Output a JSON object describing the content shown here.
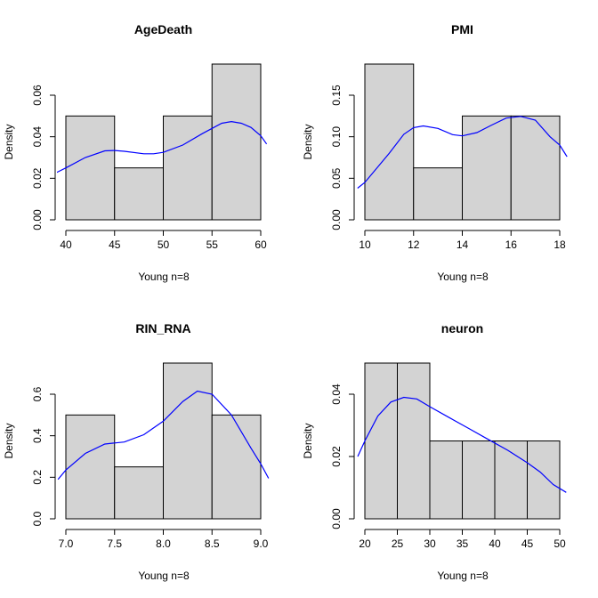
{
  "chart_data": [
    {
      "type": "bar",
      "subtype": "histogram",
      "title": "AgeDeath",
      "xlabel": "Young n=8",
      "ylabel": "Density",
      "bins": [
        [
          40,
          45
        ],
        [
          45,
          50
        ],
        [
          50,
          55
        ],
        [
          55,
          60
        ]
      ],
      "values": [
        0.05,
        0.025,
        0.05,
        0.075
      ],
      "xlim": [
        40,
        60
      ],
      "ylim": [
        0,
        0.075
      ],
      "xticks": [
        40,
        45,
        50,
        55,
        60
      ],
      "xtick_labels": [
        "40",
        "45",
        "50",
        "55",
        "60"
      ],
      "yticks": [
        0,
        0.02,
        0.04,
        0.06
      ],
      "ytick_labels": [
        "0.00",
        "0.02",
        "0.04",
        "0.06"
      ],
      "density_color": "#0000ff",
      "density_curve": [
        [
          38.7,
          0.022
        ],
        [
          40,
          0.025
        ],
        [
          42,
          0.03
        ],
        [
          44,
          0.0332
        ],
        [
          45,
          0.0334
        ],
        [
          46,
          0.033
        ],
        [
          48,
          0.0318
        ],
        [
          49,
          0.0318
        ],
        [
          50,
          0.0325
        ],
        [
          52,
          0.036
        ],
        [
          54,
          0.0415
        ],
        [
          56,
          0.0465
        ],
        [
          57,
          0.0473
        ],
        [
          58,
          0.0465
        ],
        [
          59,
          0.0445
        ],
        [
          60,
          0.0405
        ],
        [
          60.6,
          0.0365
        ]
      ]
    },
    {
      "type": "bar",
      "subtype": "histogram",
      "title": "PMI",
      "xlabel": "Young n=8",
      "ylabel": "Density",
      "bins": [
        [
          10,
          12
        ],
        [
          12,
          14
        ],
        [
          14,
          16
        ],
        [
          16,
          18
        ]
      ],
      "values": [
        0.1875,
        0.0625,
        0.125,
        0.125
      ],
      "xlim": [
        10,
        18
      ],
      "ylim": [
        0,
        0.1875
      ],
      "xticks": [
        10,
        12,
        14,
        16,
        18
      ],
      "xtick_labels": [
        "10",
        "12",
        "14",
        "16",
        "18"
      ],
      "yticks": [
        0,
        0.05,
        0.1,
        0.15
      ],
      "ytick_labels": [
        "0.00",
        "0.05",
        "0.10",
        "0.15"
      ],
      "density_color": "#0000ff",
      "density_curve": [
        [
          9.7,
          0.038
        ],
        [
          10,
          0.045
        ],
        [
          11,
          0.08
        ],
        [
          11.6,
          0.103
        ],
        [
          12,
          0.111
        ],
        [
          12.4,
          0.113
        ],
        [
          13,
          0.11
        ],
        [
          13.6,
          0.1025
        ],
        [
          14,
          0.101
        ],
        [
          14.6,
          0.105
        ],
        [
          15.2,
          0.114
        ],
        [
          15.8,
          0.1225
        ],
        [
          16.4,
          0.1245
        ],
        [
          17,
          0.12
        ],
        [
          17.6,
          0.1
        ],
        [
          18,
          0.09
        ],
        [
          18.3,
          0.076
        ]
      ]
    },
    {
      "type": "bar",
      "subtype": "histogram",
      "title": "RIN_RNA",
      "xlabel": "Young n=8",
      "ylabel": "Density",
      "bins": [
        [
          7.0,
          7.5
        ],
        [
          7.5,
          8.0
        ],
        [
          8.0,
          8.5
        ],
        [
          8.5,
          9.0
        ]
      ],
      "values": [
        0.5,
        0.25,
        0.75,
        0.5
      ],
      "xlim": [
        7.0,
        9.0
      ],
      "ylim": [
        0,
        0.75
      ],
      "xticks": [
        7.0,
        7.5,
        8.0,
        8.5,
        9.0
      ],
      "xtick_labels": [
        "7.0",
        "7.5",
        "8.0",
        "8.5",
        "9.0"
      ],
      "yticks": [
        0,
        0.2,
        0.4,
        0.6
      ],
      "ytick_labels": [
        "0.0",
        "0.2",
        "0.4",
        "0.6"
      ],
      "density_color": "#0000ff",
      "density_curve": [
        [
          6.92,
          0.19
        ],
        [
          7.0,
          0.235
        ],
        [
          7.2,
          0.315
        ],
        [
          7.4,
          0.36
        ],
        [
          7.5,
          0.365
        ],
        [
          7.6,
          0.37
        ],
        [
          7.8,
          0.405
        ],
        [
          8.0,
          0.47
        ],
        [
          8.2,
          0.565
        ],
        [
          8.35,
          0.615
        ],
        [
          8.5,
          0.6
        ],
        [
          8.7,
          0.5
        ],
        [
          8.9,
          0.34
        ],
        [
          9.0,
          0.265
        ],
        [
          9.08,
          0.195
        ]
      ]
    },
    {
      "type": "bar",
      "subtype": "histogram",
      "title": "neuron",
      "xlabel": "Young n=8",
      "ylabel": "Density",
      "bins": [
        [
          20,
          25
        ],
        [
          25,
          30
        ],
        [
          30,
          35
        ],
        [
          35,
          40
        ],
        [
          40,
          45
        ],
        [
          45,
          50
        ]
      ],
      "values": [
        0.05,
        0.05,
        0.025,
        0.025,
        0.025,
        0.025
      ],
      "xlim": [
        20,
        50
      ],
      "ylim": [
        0,
        0.05
      ],
      "xticks": [
        20,
        25,
        30,
        35,
        40,
        45,
        50
      ],
      "xtick_labels": [
        "20",
        "25",
        "30",
        "35",
        "40",
        "45",
        "50"
      ],
      "yticks": [
        0,
        0.02,
        0.04
      ],
      "ytick_labels": [
        "0.00",
        "0.02",
        "0.04"
      ],
      "density_color": "#0000ff",
      "density_curve": [
        [
          18.9,
          0.02
        ],
        [
          20,
          0.025
        ],
        [
          22,
          0.033
        ],
        [
          24,
          0.0375
        ],
        [
          26,
          0.039
        ],
        [
          28,
          0.0385
        ],
        [
          30,
          0.036
        ],
        [
          33,
          0.0325
        ],
        [
          36,
          0.029
        ],
        [
          39,
          0.0255
        ],
        [
          42,
          0.022
        ],
        [
          45,
          0.018
        ],
        [
          47,
          0.015
        ],
        [
          49,
          0.011
        ],
        [
          51,
          0.0085
        ]
      ]
    }
  ]
}
